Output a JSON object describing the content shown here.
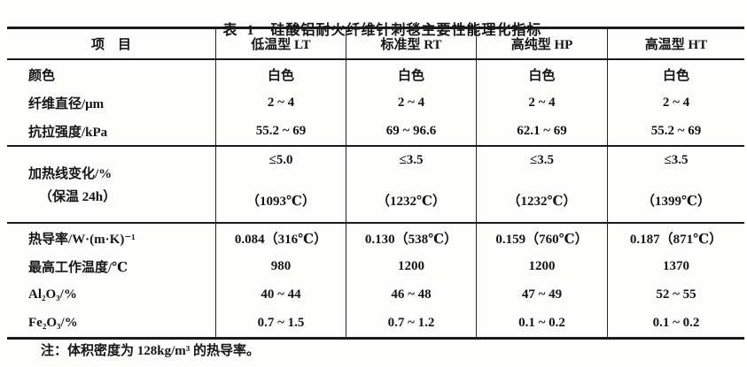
{
  "title": {
    "label": "表  1",
    "text": "硅酸铝耐火纤维针刺毯主要性能理化指标"
  },
  "table": {
    "header": {
      "item": "项    目",
      "lt": "低温型 LT",
      "rt": "标准型 RT",
      "hp": "高纯型 HP",
      "ht": "高温型 HT"
    },
    "rows_top": [
      {
        "label": "颜色",
        "v1": "白色",
        "v2": "白色",
        "v3": "白色",
        "v4": "白色"
      },
      {
        "label": "纤维直径/μm",
        "v1": "2 ~ 4",
        "v2": "2 ~ 4",
        "v3": "2 ~ 4",
        "v4": "2 ~ 4"
      },
      {
        "label": "抗拉强度/kPa",
        "v1": "55.2 ~ 69",
        "v2": "69 ~ 96.6",
        "v3": "62.1 ~ 69",
        "v4": "55.2 ~ 69"
      }
    ],
    "heating_row": {
      "label_line1": "加热线变化/%",
      "label_line2": "（保温 24h）",
      "cells": [
        {
          "limit": "≤5.0",
          "temp": "（1093℃）"
        },
        {
          "limit": "≤3.5",
          "temp": "（1232℃）"
        },
        {
          "limit": "≤3.5",
          "temp": "（1232℃）"
        },
        {
          "limit": "≤3.5",
          "temp": "（1399℃）"
        }
      ]
    },
    "rows_bottom": [
      {
        "label": "热导率/W·(m·K)⁻¹",
        "v1": "0.084（316℃）",
        "v2": "0.130（538℃）",
        "v3": "0.159（760℃）",
        "v4": "0.187（871℃）"
      },
      {
        "label": "最高工作温度/℃",
        "v1": "980",
        "v2": "1200",
        "v3": "1200",
        "v4": "1370"
      },
      {
        "label": "Al₂O₃/%",
        "v1": "40 ~ 44",
        "v2": "46 ~ 48",
        "v3": "47 ~ 49",
        "v4": "52 ~ 55"
      },
      {
        "label": "Fe₂O₃/%",
        "v1": "0.7 ~ 1.5",
        "v2": "0.7 ~ 1.2",
        "v3": "0.1 ~ 0.2",
        "v4": "0.1 ~ 0.2"
      }
    ]
  },
  "footnote": "注：体积密度为 128kg/m³ 的热导率。"
}
